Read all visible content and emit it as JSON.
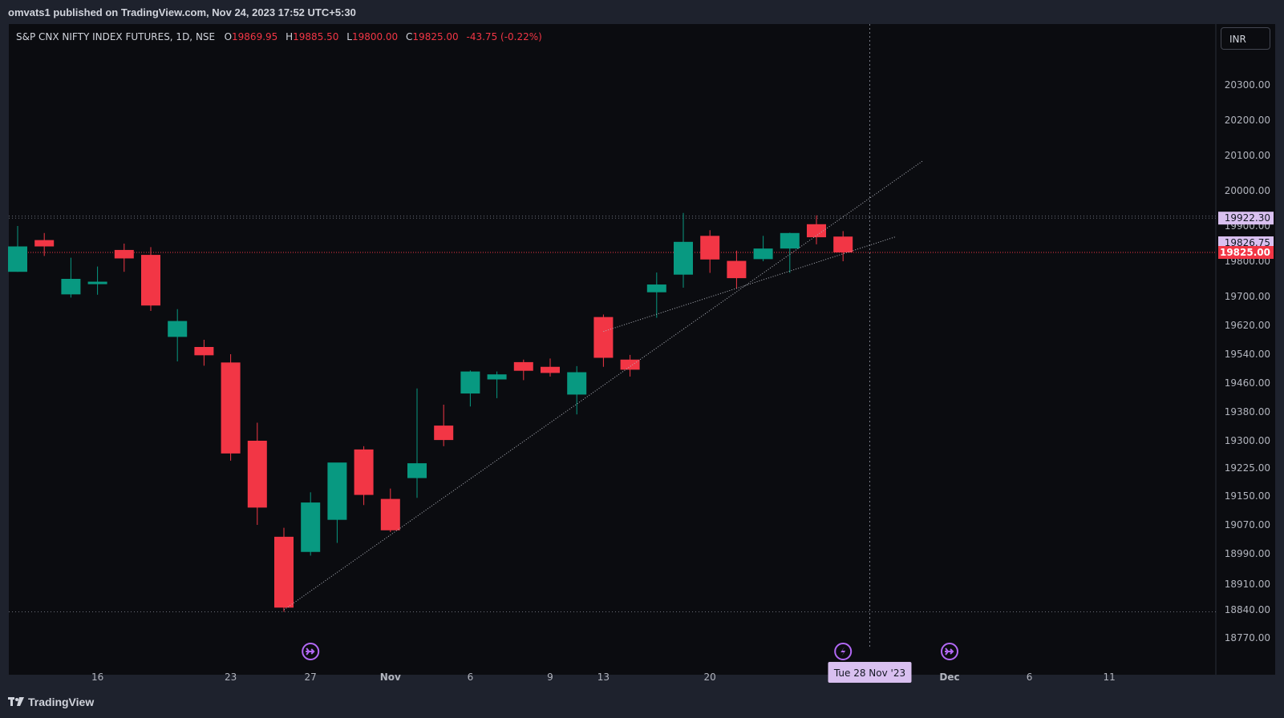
{
  "header": {
    "published_line": "omvats1 published on TradingView.com, Nov 24, 2023 17:52 UTC+5:30"
  },
  "footer": {
    "brand": "TradingView"
  },
  "currency_button": "INR",
  "legend": {
    "symbol": "S&P CNX NIFTY INDEX FUTURES, 1D, NSE",
    "open_label": "O",
    "open": "19869.95",
    "high_label": "H",
    "high": "19885.50",
    "low_label": "L",
    "low": "19800.00",
    "close_label": "C",
    "close": "19825.00",
    "change": "-43.75 (-0.22%)"
  },
  "colors": {
    "up": "#089981",
    "down": "#f23645",
    "background": "#0b0c10",
    "frame": "#1e222d",
    "axis_text": "#b2b5be",
    "marker": "#b268f5",
    "tag_purple": "#d9c0f0"
  },
  "chart_data": {
    "type": "candlestick",
    "price_axis_ticks": [
      "20300.00",
      "20200.00",
      "20100.00",
      "20000.00",
      "19900.00",
      "19800.00",
      "19700.00",
      "19620.00",
      "19540.00",
      "19460.00",
      "19380.00",
      "19300.00",
      "19225.00",
      "19150.00",
      "19070.00",
      "18990.00",
      "18910.00",
      "18840.00",
      "18770.00"
    ],
    "price_labels": [
      {
        "text": "19922.30",
        "value": 19922.3,
        "style": "purple"
      },
      {
        "text": "19826.75",
        "value": 19826.75,
        "style": "purple"
      },
      {
        "text": "19825.00",
        "value": 19825.0,
        "style": "red"
      }
    ],
    "time_axis_labels": [
      {
        "text": "16",
        "date": "2023-10-16"
      },
      {
        "text": "23",
        "date": "2023-10-23"
      },
      {
        "text": "27",
        "date": "2023-10-27"
      },
      {
        "text": "Nov",
        "date": "2023-11-01"
      },
      {
        "text": "6",
        "date": "2023-11-06"
      },
      {
        "text": "9",
        "date": "2023-11-09"
      },
      {
        "text": "13",
        "date": "2023-11-13"
      },
      {
        "text": "20",
        "date": "2023-11-20"
      },
      {
        "text": "Dec",
        "date": "2023-12-01"
      },
      {
        "text": "6",
        "date": "2023-12-06"
      },
      {
        "text": "11",
        "date": "2023-12-11"
      }
    ],
    "crosshair_date_label": "Tue 28 Nov '23",
    "crosshair_date": "2023-11-28",
    "horizontal_lines": [
      19922.3,
      19928.0,
      19825.0,
      18835.0
    ],
    "candles": [
      {
        "date": "2023-10-11",
        "open": 19770,
        "high": 19900,
        "low": 19770,
        "close": 19842
      },
      {
        "date": "2023-10-12",
        "open": 19860,
        "high": 19880,
        "low": 19815,
        "close": 19842
      },
      {
        "date": "2023-10-13",
        "open": 19706,
        "high": 19810,
        "low": 19697,
        "close": 19750
      },
      {
        "date": "2023-10-16",
        "open": 19735,
        "high": 19785,
        "low": 19705,
        "close": 19742
      },
      {
        "date": "2023-10-17",
        "open": 19832,
        "high": 19850,
        "low": 19770,
        "close": 19808
      },
      {
        "date": "2023-10-18",
        "open": 19818,
        "high": 19840,
        "low": 19660,
        "close": 19675
      },
      {
        "date": "2023-10-19",
        "open": 19588,
        "high": 19665,
        "low": 19520,
        "close": 19632
      },
      {
        "date": "2023-10-20",
        "open": 19560,
        "high": 19580,
        "low": 19508,
        "close": 19537
      },
      {
        "date": "2023-10-23",
        "open": 19517,
        "high": 19540,
        "low": 19245,
        "close": 19265
      },
      {
        "date": "2023-10-25",
        "open": 19300,
        "high": 19350,
        "low": 19070,
        "close": 19118
      },
      {
        "date": "2023-10-26",
        "open": 19037,
        "high": 19062,
        "low": 18835,
        "close": 18846
      },
      {
        "date": "2023-10-27",
        "open": 18995,
        "high": 19160,
        "low": 18985,
        "close": 19132
      },
      {
        "date": "2023-10-30",
        "open": 19084,
        "high": 19235,
        "low": 19020,
        "close": 19240
      },
      {
        "date": "2023-10-31",
        "open": 19276,
        "high": 19285,
        "low": 19125,
        "close": 19153
      },
      {
        "date": "2023-11-01",
        "open": 19142,
        "high": 19170,
        "low": 19050,
        "close": 19055
      },
      {
        "date": "2023-11-02",
        "open": 19198,
        "high": 19445,
        "low": 19145,
        "close": 19238
      },
      {
        "date": "2023-11-03",
        "open": 19342,
        "high": 19400,
        "low": 19285,
        "close": 19302
      },
      {
        "date": "2023-11-06",
        "open": 19431,
        "high": 19495,
        "low": 19395,
        "close": 19492
      },
      {
        "date": "2023-11-07",
        "open": 19470,
        "high": 19492,
        "low": 19418,
        "close": 19484
      },
      {
        "date": "2023-11-08",
        "open": 19518,
        "high": 19525,
        "low": 19468,
        "close": 19494
      },
      {
        "date": "2023-11-09",
        "open": 19505,
        "high": 19528,
        "low": 19478,
        "close": 19488
      },
      {
        "date": "2023-11-10",
        "open": 19428,
        "high": 19507,
        "low": 19373,
        "close": 19490
      },
      {
        "date": "2023-11-13",
        "open": 19643,
        "high": 19650,
        "low": 19505,
        "close": 19530
      },
      {
        "date": "2023-11-15",
        "open": 19525,
        "high": 19538,
        "low": 19478,
        "close": 19497
      },
      {
        "date": "2023-11-16",
        "open": 19712,
        "high": 19768,
        "low": 19641,
        "close": 19734
      },
      {
        "date": "2023-11-17",
        "open": 19762,
        "high": 19937,
        "low": 19725,
        "close": 19855
      },
      {
        "date": "2023-11-20",
        "open": 19872,
        "high": 19888,
        "low": 19767,
        "close": 19805
      },
      {
        "date": "2023-11-21",
        "open": 19801,
        "high": 19830,
        "low": 19722,
        "close": 19752
      },
      {
        "date": "2023-11-22",
        "open": 19806,
        "high": 19872,
        "low": 19800,
        "close": 19836
      },
      {
        "date": "2023-11-23",
        "open": 19836,
        "high": 19881,
        "low": 19767,
        "close": 19880
      },
      {
        "date": "2023-11-24",
        "open": 19905,
        "high": 19930,
        "low": 19848,
        "close": 19868
      },
      {
        "date": "2023-11-27",
        "open": 19869.95,
        "high": 19885.5,
        "low": 19800,
        "close": 19825
      }
    ],
    "trendlines": [
      {
        "from": {
          "date": "2023-10-26",
          "price": 18840
        },
        "to": {
          "date": "2023-11-30",
          "price": 20085
        }
      },
      {
        "from": {
          "date": "2023-11-13",
          "price": 19603
        },
        "to": {
          "date": "2023-11-29",
          "price": 19870
        }
      }
    ],
    "event_markers": [
      {
        "date": "2023-10-27",
        "icon": "split-arrow-icon"
      },
      {
        "date": "2023-11-27",
        "icon": "lightning-icon"
      },
      {
        "date": "2023-12-01",
        "icon": "split-arrow-icon"
      }
    ]
  }
}
